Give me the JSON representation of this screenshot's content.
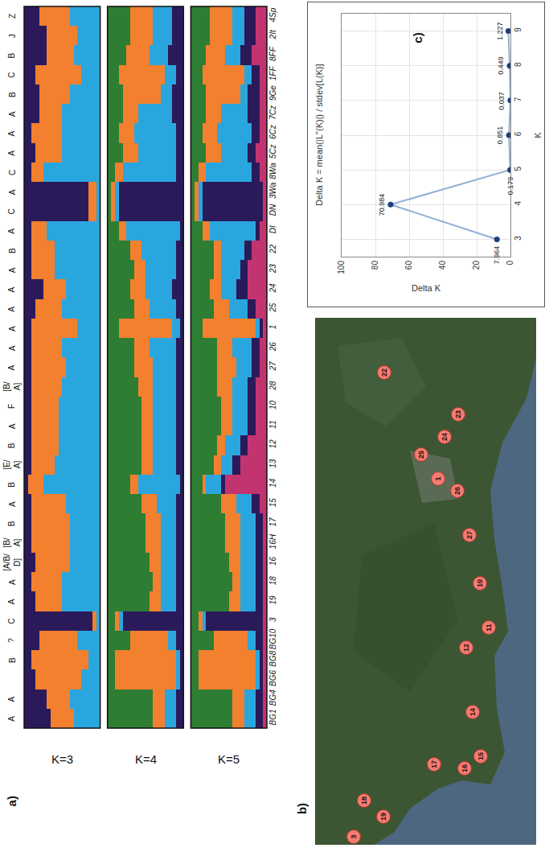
{
  "chart_data": [
    {
      "type": "bar",
      "orientation": "horizontal",
      "stacked": true,
      "panel_label": "a)",
      "categories": [
        "BG1",
        "BG4",
        "BG6",
        "BG8",
        "BG10",
        "3",
        "19",
        "18",
        "16",
        "16H",
        "17",
        "15",
        "14",
        "13",
        "12",
        "11",
        "10",
        "28",
        "27",
        "26",
        "1",
        "25",
        "24",
        "23",
        "22",
        "DI",
        "DN",
        "3Wa",
        "8Wa",
        "5Cz",
        "6Cz",
        "7Cz",
        "9Ge",
        "1FF",
        "8FF",
        "2It",
        "4Sp"
      ],
      "group_labels": [
        "A",
        "A",
        null,
        "B",
        "?",
        "C",
        "A",
        "A",
        "[A/B/D]",
        "[B/A]",
        "B",
        "A",
        "B",
        "[E/A]",
        "B",
        "A",
        "F",
        "[B/A]",
        "A",
        "A",
        "A",
        "A",
        "A",
        "A",
        "B",
        "A",
        "C",
        "A",
        "C",
        "A",
        "A",
        "A",
        "B",
        "C",
        "B",
        "J",
        "Z"
      ],
      "xlim": [
        0,
        1
      ],
      "tick_labels": "y",
      "panels": [
        {
          "title": "K=3",
          "series": [
            {
              "color": "#2b1a5a",
              "values": [
                0.35,
                0.3,
                0.15,
                0.1,
                0.2,
                0.9,
                0.15,
                0.1,
                0.15,
                0.1,
                0.1,
                0.1,
                0.05,
                0.1,
                0.1,
                0.1,
                0.1,
                0.1,
                0.1,
                0.1,
                0.1,
                0.15,
                0.25,
                0.1,
                0.1,
                0.1,
                0.85,
                0.85,
                0.1,
                0.15,
                0.1,
                0.2,
                0.2,
                0.15,
                0.3,
                0.3,
                0.2
              ]
            },
            {
              "color": "#f2802e",
              "values": [
                0.3,
                0.3,
                0.6,
                0.75,
                0.5,
                0.05,
                0.35,
                0.4,
                0.45,
                0.5,
                0.5,
                0.45,
                0.2,
                0.3,
                0.35,
                0.35,
                0.35,
                0.4,
                0.45,
                0.4,
                0.6,
                0.35,
                0.3,
                0.3,
                0.3,
                0.2,
                0.1,
                0.1,
                0.15,
                0.35,
                0.4,
                0.3,
                0.4,
                0.6,
                0.35,
                0.4,
                0.4
              ]
            },
            {
              "color": "#2aa6df",
              "values": [
                0.35,
                0.4,
                0.25,
                0.15,
                0.3,
                0.05,
                0.5,
                0.5,
                0.4,
                0.4,
                0.4,
                0.45,
                0.75,
                0.6,
                0.55,
                0.55,
                0.55,
                0.5,
                0.45,
                0.5,
                0.3,
                0.5,
                0.45,
                0.6,
                0.6,
                0.7,
                0.05,
                0.05,
                0.75,
                0.5,
                0.5,
                0.5,
                0.4,
                0.25,
                0.35,
                0.3,
                0.4
              ]
            }
          ]
        },
        {
          "title": "K=4",
          "series": [
            {
              "color": "#2d7d32",
              "values": [
                0.6,
                0.6,
                0.1,
                0.1,
                0.3,
                0.1,
                0.55,
                0.6,
                0.55,
                0.5,
                0.5,
                0.45,
                0.3,
                0.45,
                0.45,
                0.45,
                0.45,
                0.4,
                0.35,
                0.35,
                0.15,
                0.35,
                0.3,
                0.35,
                0.3,
                0.15,
                0.05,
                0.05,
                0.1,
                0.2,
                0.15,
                0.2,
                0.2,
                0.15,
                0.25,
                0.3,
                0.3
              ]
            },
            {
              "color": "#f2802e",
              "values": [
                0.15,
                0.15,
                0.8,
                0.8,
                0.5,
                0.05,
                0.15,
                0.1,
                0.15,
                0.2,
                0.2,
                0.2,
                0.1,
                0.15,
                0.15,
                0.15,
                0.15,
                0.2,
                0.25,
                0.2,
                0.7,
                0.2,
                0.2,
                0.15,
                0.15,
                0.1,
                0.05,
                0.05,
                0.1,
                0.2,
                0.2,
                0.2,
                0.5,
                0.6,
                0.3,
                0.3,
                0.3
              ]
            },
            {
              "color": "#2aa6df",
              "values": [
                0.15,
                0.15,
                0.05,
                0.05,
                0.1,
                0.05,
                0.2,
                0.2,
                0.2,
                0.2,
                0.2,
                0.25,
                0.55,
                0.3,
                0.3,
                0.3,
                0.3,
                0.3,
                0.3,
                0.35,
                0.1,
                0.35,
                0.35,
                0.4,
                0.45,
                0.7,
                0.05,
                0.05,
                0.7,
                0.5,
                0.55,
                0.45,
                0.15,
                0.15,
                0.25,
                0.25,
                0.25
              ]
            },
            {
              "color": "#2b1a5a",
              "values": [
                0.1,
                0.1,
                0.05,
                0.05,
                0.1,
                0.8,
                0.1,
                0.1,
                0.1,
                0.1,
                0.1,
                0.1,
                0.05,
                0.1,
                0.1,
                0.1,
                0.1,
                0.1,
                0.1,
                0.1,
                0.05,
                0.1,
                0.15,
                0.1,
                0.1,
                0.05,
                0.85,
                0.85,
                0.1,
                0.1,
                0.1,
                0.15,
                0.15,
                0.1,
                0.2,
                0.15,
                0.15
              ]
            }
          ]
        },
        {
          "title": "K=5",
          "series": [
            {
              "color": "#2d7d32",
              "values": [
                0.55,
                0.55,
                0.1,
                0.1,
                0.3,
                0.1,
                0.5,
                0.55,
                0.5,
                0.45,
                0.45,
                0.4,
                0.15,
                0.3,
                0.35,
                0.4,
                0.4,
                0.35,
                0.35,
                0.35,
                0.15,
                0.3,
                0.25,
                0.3,
                0.3,
                0.15,
                0.05,
                0.05,
                0.1,
                0.2,
                0.15,
                0.2,
                0.2,
                0.15,
                0.2,
                0.25,
                0.25
              ]
            },
            {
              "color": "#f2802e",
              "values": [
                0.15,
                0.15,
                0.75,
                0.75,
                0.45,
                0.05,
                0.15,
                0.1,
                0.15,
                0.2,
                0.2,
                0.2,
                0.05,
                0.1,
                0.1,
                0.15,
                0.15,
                0.2,
                0.25,
                0.2,
                0.7,
                0.2,
                0.15,
                0.1,
                0.1,
                0.1,
                0.05,
                0.05,
                0.1,
                0.2,
                0.2,
                0.2,
                0.45,
                0.55,
                0.25,
                0.3,
                0.3
              ]
            },
            {
              "color": "#2aa6df",
              "values": [
                0.15,
                0.15,
                0.05,
                0.05,
                0.1,
                0.05,
                0.2,
                0.2,
                0.2,
                0.2,
                0.2,
                0.2,
                0.2,
                0.15,
                0.2,
                0.2,
                0.2,
                0.2,
                0.2,
                0.25,
                0.05,
                0.25,
                0.2,
                0.25,
                0.3,
                0.6,
                0.05,
                0.05,
                0.6,
                0.35,
                0.45,
                0.35,
                0.1,
                0.1,
                0.2,
                0.15,
                0.15
              ]
            },
            {
              "color": "#2b1a5a",
              "values": [
                0.1,
                0.1,
                0.05,
                0.05,
                0.1,
                0.75,
                0.1,
                0.1,
                0.1,
                0.1,
                0.1,
                0.1,
                0.05,
                0.1,
                0.1,
                0.1,
                0.1,
                0.1,
                0.1,
                0.1,
                0.05,
                0.1,
                0.15,
                0.1,
                0.1,
                0.05,
                0.8,
                0.8,
                0.1,
                0.1,
                0.1,
                0.15,
                0.15,
                0.1,
                0.15,
                0.15,
                0.15
              ]
            },
            {
              "color": "#c2346f",
              "values": [
                0.05,
                0.05,
                0.05,
                0.05,
                0.05,
                0.05,
                0.05,
                0.05,
                0.05,
                0.05,
                0.05,
                0.1,
                0.55,
                0.35,
                0.25,
                0.15,
                0.15,
                0.15,
                0.1,
                0.1,
                0.05,
                0.15,
                0.25,
                0.25,
                0.2,
                0.1,
                0.05,
                0.05,
                0.1,
                0.15,
                0.1,
                0.1,
                0.1,
                0.1,
                0.2,
                0.15,
                0.15
              ]
            }
          ]
        }
      ]
    },
    {
      "type": "line",
      "panel_label": "c)",
      "title": "Delta K = mean(|L''(K)|) / stdev[L(K)]",
      "x_label": "K",
      "y_label": "Delta K",
      "x": [
        3,
        4,
        5,
        6,
        7,
        8,
        9
      ],
      "values": [
        7.964,
        70.984,
        0.179,
        0.851,
        0.037,
        0.449,
        1.227
      ],
      "xlim": [
        2.5,
        9.5
      ],
      "xticks": [
        3,
        4,
        5,
        6,
        7,
        8,
        9
      ],
      "ylim": [
        0,
        100
      ],
      "yticks": [
        0,
        20,
        40,
        60,
        80,
        100
      ],
      "grid": true,
      "data_labels": true,
      "color": "#8fb0d6",
      "marker": "circle"
    }
  ],
  "map": {
    "panel_label": "b)",
    "sites": [
      "22",
      "23",
      "24",
      "25",
      "1",
      "26",
      "27",
      "10",
      "11",
      "12",
      "14",
      "15",
      "16",
      "17",
      "18",
      "19",
      "3"
    ]
  }
}
